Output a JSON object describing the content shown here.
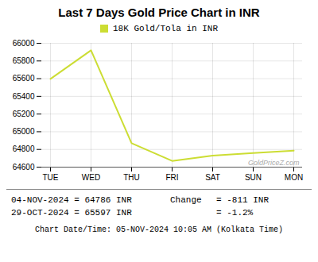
{
  "chart_data": {
    "type": "line",
    "title": "Last 7 Days Gold Price Chart in INR",
    "categories": [
      "TUE",
      "WED",
      "THU",
      "FRI",
      "SAT",
      "SUN",
      "MON"
    ],
    "series": [
      {
        "name": "18K Gold/Tola in INR",
        "color": "#ccdd33",
        "values": [
          65597,
          65920,
          64870,
          64670,
          64730,
          64760,
          64786
        ]
      }
    ],
    "ylim": [
      64600,
      66000
    ],
    "yticks": [
      64600,
      64800,
      65000,
      65200,
      65400,
      65600,
      65800,
      66000
    ],
    "grid": true,
    "legend": "top",
    "annotations": [
      "GoldPriceZ.com",
      "04-NOV-2024 = 64786 INR",
      "29-OCT-2024 = 65597 INR",
      "Change",
      "= -811 INR",
      "= -1.2%",
      "Chart Date/Time: 05-NOV-2024 10:05 AM (Kolkata Time)"
    ]
  }
}
